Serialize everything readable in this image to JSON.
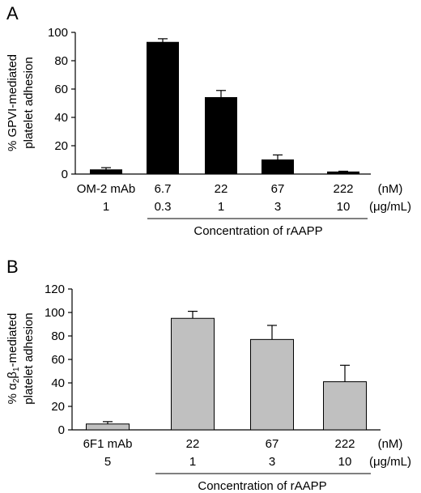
{
  "chart_data": [
    {
      "type": "bar",
      "panel_label": "A",
      "ylabel_lines": [
        "% GPVI-mediated",
        "platelet adhesion"
      ],
      "ylim": [
        0,
        100
      ],
      "yticks": [
        0,
        20,
        40,
        60,
        80,
        100
      ],
      "categories": [
        "OM-2 mAb",
        "6.7",
        "22",
        "67",
        "222"
      ],
      "second_row": [
        "1",
        "0.3",
        "1",
        "3",
        "10"
      ],
      "unit_row1": "(nM)",
      "unit_row2": "(μg/mL)",
      "group_label": "Concentration of rAAPP",
      "values": [
        3,
        93,
        54,
        10,
        1.5
      ],
      "errors": [
        1.5,
        2.5,
        5,
        3.5,
        0.5
      ],
      "bar_color": "#000000"
    },
    {
      "type": "bar",
      "panel_label": "B",
      "ylabel_lines": [
        "% α2β1-mediated",
        "platelet adhesion"
      ],
      "ylim": [
        0,
        120
      ],
      "yticks": [
        0,
        20,
        40,
        60,
        80,
        100,
        120
      ],
      "categories": [
        "6F1 mAb",
        "22",
        "67",
        "222"
      ],
      "second_row": [
        "5",
        "1",
        "3",
        "10"
      ],
      "unit_row1": "(nM)",
      "unit_row2": "(μg/mL)",
      "group_label": "Concentration of rAAPP",
      "values": [
        5,
        95,
        77,
        41
      ],
      "errors": [
        2,
        6,
        12,
        14
      ],
      "bar_color": "#c0c0c0"
    }
  ]
}
